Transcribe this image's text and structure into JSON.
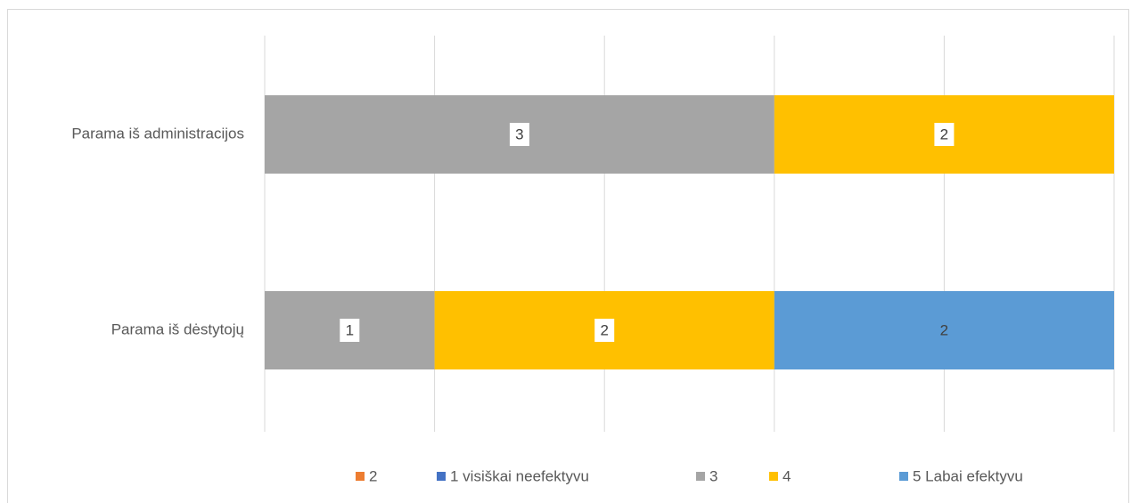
{
  "chart_data": {
    "type": "stacked_bar_horizontal",
    "categories": [
      "Parama iš administracijos",
      "Parama iš dėstytojų"
    ],
    "series": [
      {
        "name": "2",
        "color": "#ED7D31",
        "values": [
          null,
          null
        ]
      },
      {
        "name": "1 visiškai neefektyvu",
        "color": "#4472C4",
        "values": [
          null,
          null
        ]
      },
      {
        "name": "3",
        "color": "#A5A5A5",
        "values": [
          3,
          1
        ]
      },
      {
        "name": "4",
        "color": "#FFC000",
        "values": [
          2,
          2
        ]
      },
      {
        "name": "5 Labai efektyvu",
        "color": "#5B9BD5",
        "values": [
          null,
          2
        ]
      }
    ],
    "xlim": [
      0,
      5
    ],
    "xticks": [
      0,
      1,
      2,
      3,
      4,
      5
    ],
    "grid": true,
    "legend": "bottom"
  }
}
